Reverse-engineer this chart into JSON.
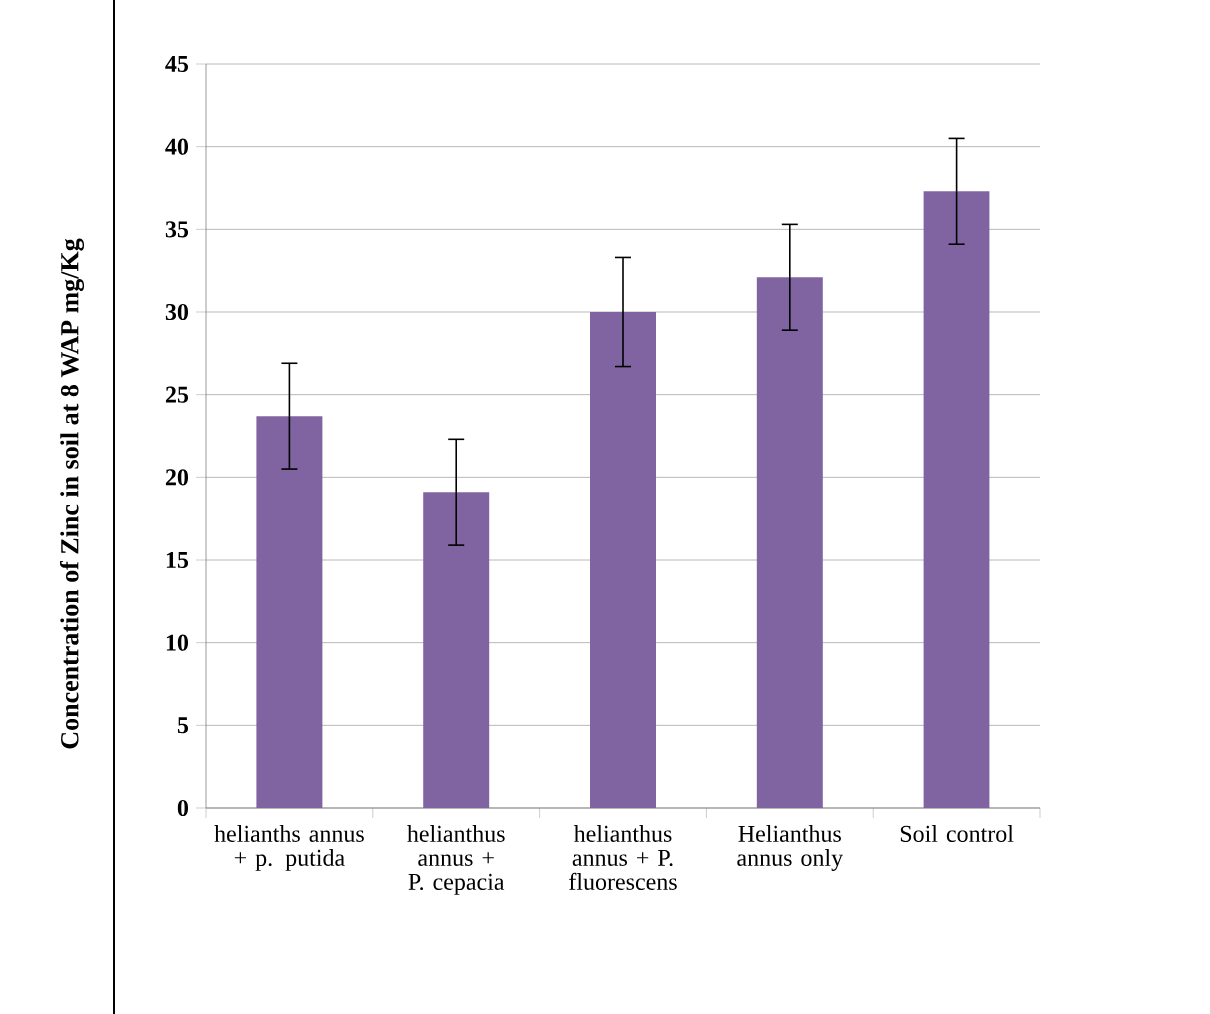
{
  "chart_data": {
    "type": "bar",
    "ylabel": "Concentration of Zinc in soil at 8 WAP mg/Kg",
    "categories": [
      "helianths annus + p. putida",
      "helianthus annus + P. cepacia",
      "helianthus annus + P. fluorescens",
      "Helianthus annus only",
      "Soil control"
    ],
    "values": [
      23.7,
      19.1,
      30.0,
      32.1,
      37.3
    ],
    "errors": [
      3.2,
      3.2,
      3.3,
      3.2,
      3.2
    ],
    "color": "#8064a2",
    "ylim": [
      0,
      45
    ],
    "yticks": [
      0,
      5,
      10,
      15,
      20,
      25,
      30,
      35,
      40,
      45
    ],
    "grid": "y"
  }
}
